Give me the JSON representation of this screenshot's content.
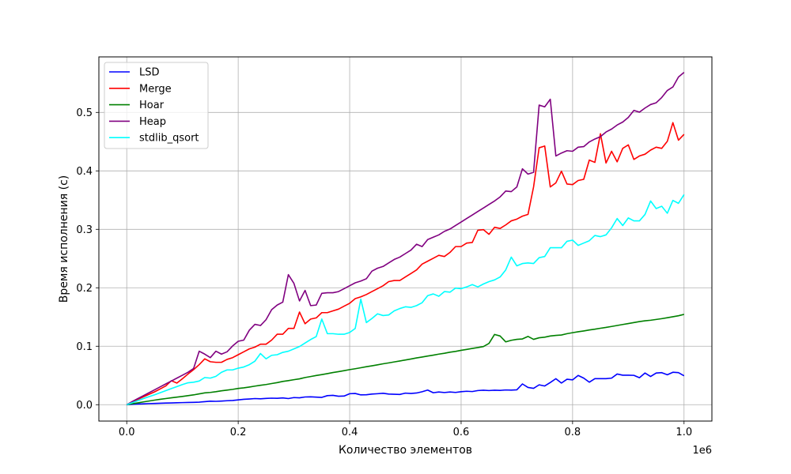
{
  "chart_data": {
    "type": "line",
    "title": "",
    "xlabel": "Количество элементов",
    "ylabel": "Время исполнения (с)",
    "x_offset_text": "1e6",
    "xlim": [
      -50000,
      1050000
    ],
    "ylim": [
      -0.028,
      0.595
    ],
    "grid": true,
    "legend_position": "upper-left",
    "x_ticks": [
      0,
      200000,
      400000,
      600000,
      800000,
      1000000
    ],
    "x_tick_labels": [
      "0.0",
      "0.2",
      "0.4",
      "0.6",
      "0.8",
      "1.0"
    ],
    "y_ticks": [
      0,
      0.1,
      0.2,
      0.3,
      0.4,
      0.5
    ],
    "y_tick_labels": [
      "0.0",
      "0.1",
      "0.2",
      "0.3",
      "0.4",
      "0.5"
    ],
    "x": [
      0,
      10000,
      20000,
      30000,
      40000,
      50000,
      60000,
      70000,
      80000,
      90000,
      100000,
      110000,
      120000,
      130000,
      140000,
      150000,
      160000,
      170000,
      180000,
      190000,
      200000,
      210000,
      220000,
      230000,
      240000,
      250000,
      260000,
      270000,
      280000,
      290000,
      300000,
      310000,
      320000,
      330000,
      340000,
      350000,
      360000,
      370000,
      380000,
      390000,
      400000,
      410000,
      420000,
      430000,
      440000,
      450000,
      460000,
      470000,
      480000,
      490000,
      500000,
      510000,
      520000,
      530000,
      540000,
      550000,
      560000,
      570000,
      580000,
      590000,
      600000,
      610000,
      620000,
      630000,
      640000,
      650000,
      660000,
      670000,
      680000,
      690000,
      700000,
      710000,
      720000,
      730000,
      740000,
      750000,
      760000,
      770000,
      780000,
      790000,
      800000,
      810000,
      820000,
      830000,
      840000,
      850000,
      860000,
      870000,
      880000,
      890000,
      900000,
      910000,
      920000,
      930000,
      940000,
      950000,
      960000,
      970000,
      980000,
      990000,
      1000000
    ],
    "series": [
      {
        "name": "LSD",
        "color": "#0000ff",
        "values": [
          0.0,
          0.0006,
          0.0011,
          0.0015,
          0.0019,
          0.0022,
          0.0025,
          0.0028,
          0.003,
          0.0033,
          0.0036,
          0.0038,
          0.004,
          0.0044,
          0.0052,
          0.006,
          0.0058,
          0.0062,
          0.0068,
          0.0072,
          0.0082,
          0.0092,
          0.0098,
          0.0105,
          0.0101,
          0.0108,
          0.0112,
          0.011,
          0.0116,
          0.0105,
          0.0122,
          0.0118,
          0.0132,
          0.0135,
          0.013,
          0.0125,
          0.0155,
          0.016,
          0.0145,
          0.0148,
          0.0188,
          0.0192,
          0.0168,
          0.017,
          0.0182,
          0.0188,
          0.0195,
          0.0182,
          0.0178,
          0.0175,
          0.0198,
          0.0192,
          0.02,
          0.0222,
          0.025,
          0.0205,
          0.0218,
          0.0208,
          0.0218,
          0.021,
          0.0222,
          0.023,
          0.0225,
          0.0242,
          0.0248,
          0.0242,
          0.0248,
          0.0245,
          0.0252,
          0.025,
          0.0255,
          0.0355,
          0.0295,
          0.028,
          0.034,
          0.032,
          0.038,
          0.0445,
          0.037,
          0.0435,
          0.0425,
          0.05,
          0.0455,
          0.0385,
          0.0445,
          0.0445,
          0.0445,
          0.0455,
          0.0525,
          0.0505,
          0.0505,
          0.0502,
          0.0462,
          0.0542,
          0.0482,
          0.0542,
          0.0548,
          0.0512,
          0.0555,
          0.0548,
          0.0495
        ]
      },
      {
        "name": "Merge",
        "color": "#ff0000",
        "values": [
          0.0,
          0.0045,
          0.0092,
          0.0135,
          0.0178,
          0.022,
          0.027,
          0.032,
          0.041,
          0.037,
          0.0445,
          0.0525,
          0.06,
          0.0685,
          0.0785,
          0.0735,
          0.0725,
          0.0725,
          0.0775,
          0.0805,
          0.0855,
          0.0905,
          0.0955,
          0.0985,
          0.1035,
          0.1035,
          0.1105,
          0.1205,
          0.1205,
          0.1305,
          0.1305,
          0.1585,
          0.1385,
          0.1465,
          0.1485,
          0.1575,
          0.1575,
          0.1605,
          0.1635,
          0.1685,
          0.1735,
          0.1815,
          0.1845,
          0.1885,
          0.1935,
          0.1985,
          0.2035,
          0.2105,
          0.2125,
          0.2125,
          0.2185,
          0.2245,
          0.2305,
          0.2405,
          0.2455,
          0.2505,
          0.2555,
          0.2535,
          0.2605,
          0.2705,
          0.2705,
          0.2765,
          0.2775,
          0.2985,
          0.2995,
          0.2915,
          0.3035,
          0.3015,
          0.3075,
          0.3145,
          0.3175,
          0.3225,
          0.3255,
          0.3725,
          0.4395,
          0.4425,
          0.3725,
          0.3795,
          0.3995,
          0.3775,
          0.3765,
          0.3835,
          0.3855,
          0.4185,
          0.4145,
          0.4635,
          0.4135,
          0.4335,
          0.4155,
          0.4385,
          0.4445,
          0.4195,
          0.4255,
          0.4285,
          0.4355,
          0.4405,
          0.4385,
          0.4505,
          0.4825,
          0.4525,
          0.4625
        ]
      },
      {
        "name": "Hoar",
        "color": "#008000",
        "values": [
          0.0,
          0.0016,
          0.0032,
          0.0048,
          0.0063,
          0.0078,
          0.0093,
          0.0105,
          0.0118,
          0.013,
          0.0142,
          0.0155,
          0.0168,
          0.0185,
          0.0202,
          0.021,
          0.0222,
          0.0238,
          0.025,
          0.0262,
          0.0278,
          0.0288,
          0.0302,
          0.0318,
          0.0332,
          0.0345,
          0.0362,
          0.0378,
          0.0398,
          0.0412,
          0.0428,
          0.0442,
          0.0465,
          0.0482,
          0.05,
          0.0515,
          0.0532,
          0.055,
          0.0565,
          0.0582,
          0.06,
          0.0615,
          0.0632,
          0.065,
          0.0665,
          0.0682,
          0.07,
          0.0715,
          0.0732,
          0.0748,
          0.0765,
          0.0782,
          0.08,
          0.0815,
          0.0832,
          0.0848,
          0.0865,
          0.088,
          0.0898,
          0.0912,
          0.093,
          0.0945,
          0.0962,
          0.0978,
          0.0995,
          0.1048,
          0.1202,
          0.1175,
          0.1075,
          0.1102,
          0.1118,
          0.1125,
          0.1168,
          0.1118,
          0.1145,
          0.1155,
          0.1175,
          0.1185,
          0.1192,
          0.1215,
          0.1232,
          0.1248,
          0.1262,
          0.1278,
          0.1292,
          0.1308,
          0.1322,
          0.1338,
          0.1355,
          0.1372,
          0.1388,
          0.1405,
          0.1422,
          0.1435,
          0.1445,
          0.1458,
          0.1472,
          0.1488,
          0.1505,
          0.1522,
          0.1545
        ]
      },
      {
        "name": "Heap",
        "color": "#800080",
        "values": [
          0.0,
          0.0055,
          0.0105,
          0.0155,
          0.0205,
          0.0255,
          0.0305,
          0.0355,
          0.0405,
          0.0455,
          0.0505,
          0.0555,
          0.062,
          0.0915,
          0.0865,
          0.0805,
          0.0915,
          0.0865,
          0.0905,
          0.1005,
          0.1085,
          0.1105,
          0.1275,
          0.1375,
          0.1355,
          0.1455,
          0.1625,
          0.1705,
          0.1755,
          0.2225,
          0.2075,
          0.1775,
          0.1955,
          0.1695,
          0.1705,
          0.1905,
          0.1915,
          0.1915,
          0.1935,
          0.1985,
          0.2035,
          0.2085,
          0.2115,
          0.2155,
          0.2285,
          0.2335,
          0.2365,
          0.2425,
          0.2485,
          0.2525,
          0.2585,
          0.2645,
          0.2745,
          0.2705,
          0.2825,
          0.2865,
          0.2905,
          0.2965,
          0.3005,
          0.3065,
          0.3125,
          0.3185,
          0.3245,
          0.3305,
          0.3365,
          0.3425,
          0.3485,
          0.3555,
          0.3655,
          0.3645,
          0.3725,
          0.4035,
          0.3945,
          0.3975,
          0.5125,
          0.5095,
          0.5225,
          0.4255,
          0.4305,
          0.4345,
          0.4335,
          0.4405,
          0.4415,
          0.4495,
          0.4545,
          0.4585,
          0.4665,
          0.4715,
          0.4785,
          0.4835,
          0.4915,
          0.5035,
          0.5005,
          0.5075,
          0.5135,
          0.5165,
          0.5255,
          0.5375,
          0.5435,
          0.5605,
          0.5685
        ]
      },
      {
        "name": "stdlib_qsort",
        "color": "#00ffff",
        "values": [
          0.0,
          0.0035,
          0.007,
          0.0105,
          0.0138,
          0.017,
          0.0205,
          0.024,
          0.0275,
          0.031,
          0.0345,
          0.0375,
          0.0385,
          0.0405,
          0.0465,
          0.0455,
          0.0485,
          0.0555,
          0.0595,
          0.0595,
          0.0625,
          0.0645,
          0.0685,
          0.0745,
          0.0875,
          0.0785,
          0.0845,
          0.0855,
          0.0895,
          0.0915,
          0.0955,
          0.0995,
          0.1055,
          0.1115,
          0.1165,
          0.1465,
          0.1215,
          0.1215,
          0.1205,
          0.1205,
          0.1235,
          0.1305,
          0.1805,
          0.1405,
          0.1475,
          0.1555,
          0.1525,
          0.1535,
          0.1605,
          0.1645,
          0.1675,
          0.1665,
          0.1695,
          0.1745,
          0.1865,
          0.1895,
          0.1855,
          0.1935,
          0.1925,
          0.1995,
          0.1985,
          0.2015,
          0.2055,
          0.2015,
          0.2065,
          0.2105,
          0.2135,
          0.2185,
          0.2305,
          0.2525,
          0.2375,
          0.2415,
          0.2425,
          0.2415,
          0.2515,
          0.2535,
          0.2685,
          0.2685,
          0.2685,
          0.2795,
          0.2815,
          0.2725,
          0.2765,
          0.2805,
          0.2895,
          0.2875,
          0.2905,
          0.3025,
          0.3185,
          0.3065,
          0.3195,
          0.3145,
          0.3145,
          0.3255,
          0.3485,
          0.3355,
          0.3395,
          0.3275,
          0.3495,
          0.3445,
          0.3595
        ]
      }
    ]
  }
}
